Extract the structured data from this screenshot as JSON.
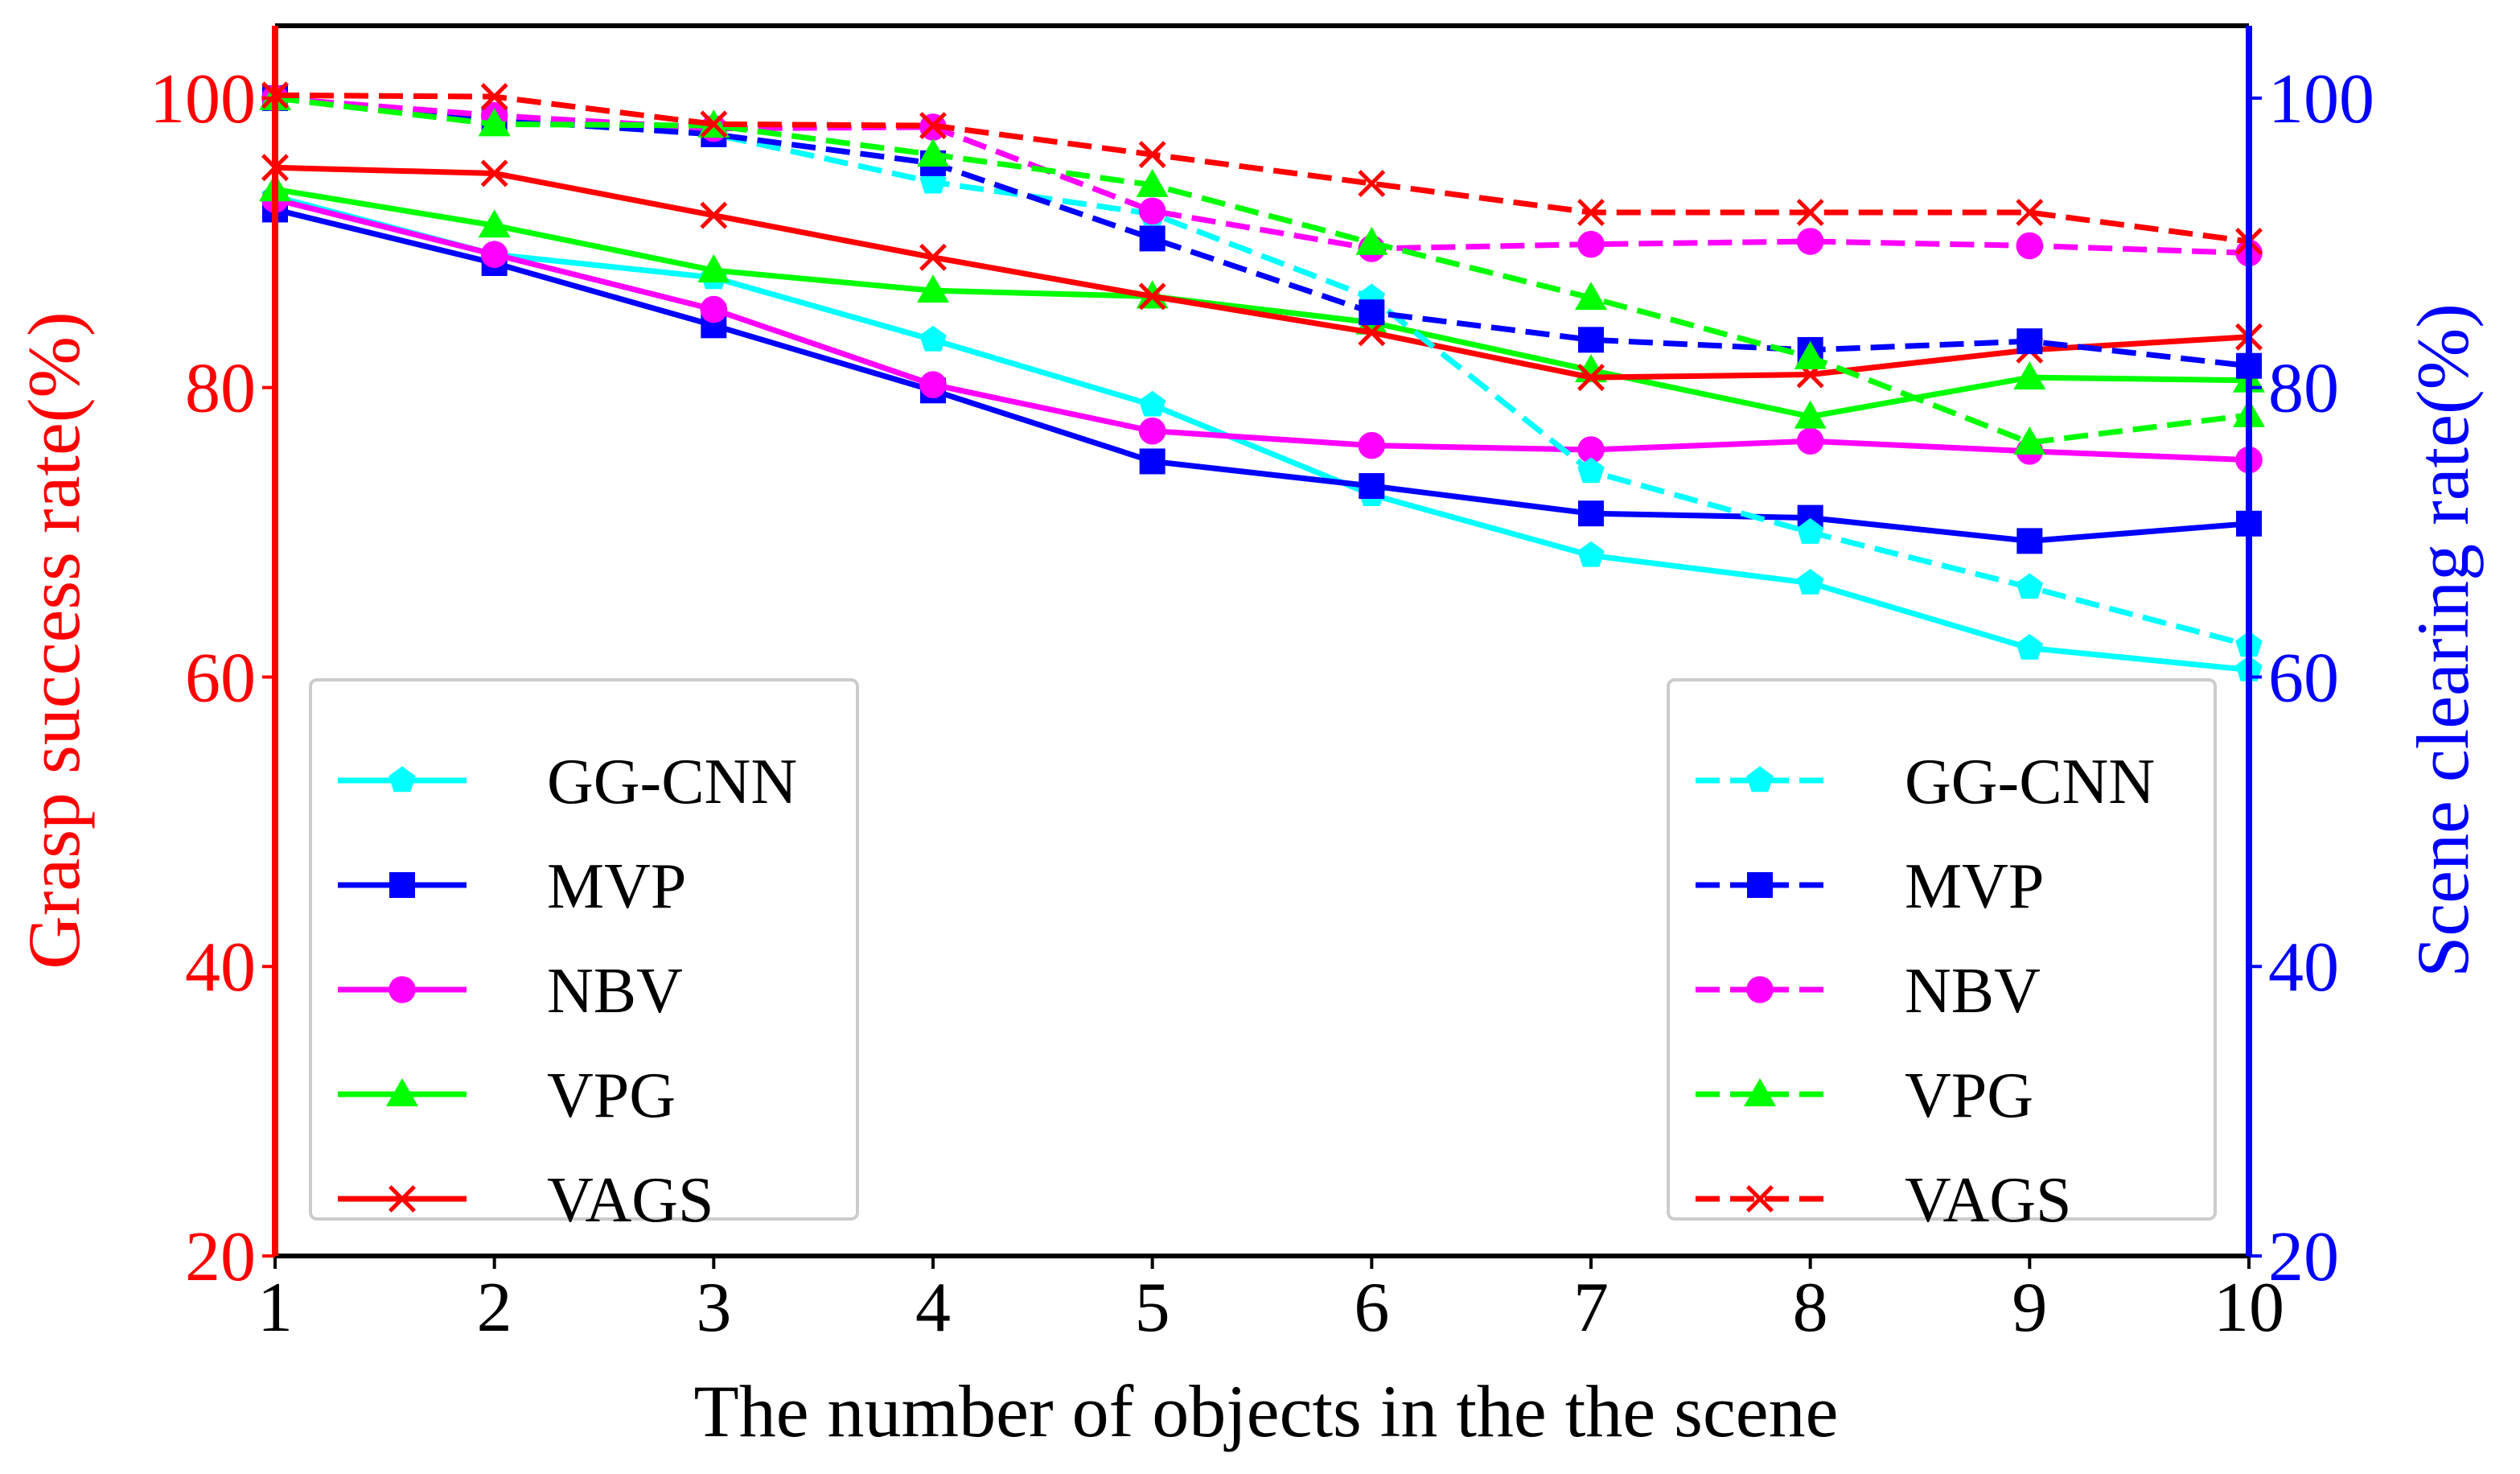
{
  "chart_data": {
    "type": "line",
    "xlabel": "The number of objects in the the scene",
    "ylabel_left": "Grasp success rate(%)",
    "ylabel_right": "Scene clearing rate(%)",
    "x": [
      1,
      2,
      3,
      4,
      5,
      6,
      7,
      8,
      9,
      10
    ],
    "x_ticks": [
      "1",
      "2",
      "3",
      "4",
      "5",
      "6",
      "7",
      "8",
      "9",
      "10"
    ],
    "ylim_left": [
      20,
      105
    ],
    "ylim_right": [
      20,
      105
    ],
    "yticks_left": [
      "20",
      "40",
      "60",
      "80",
      "100"
    ],
    "yticks_right": [
      "20",
      "40",
      "60",
      "80",
      "100"
    ],
    "colors": {
      "left_axis": "#ff0000",
      "right_axis": "#0000ff",
      "GG-CNN": "#00ffff",
      "MVP": "#0000ff",
      "NBV": "#ff00ff",
      "VPG": "#00ff00",
      "VAGS": "#ff0000"
    },
    "grasp_success_series": [
      {
        "name": "GG-CNN",
        "marker": "pentagon",
        "values": [
          93.2,
          89.2,
          87.6,
          83.3,
          78.8,
          72.6,
          68.4,
          66.5,
          62.0,
          60.5
        ]
      },
      {
        "name": "MVP",
        "marker": "square",
        "values": [
          92.3,
          88.6,
          84.3,
          79.8,
          74.9,
          73.2,
          71.3,
          71.0,
          69.4,
          70.6
        ]
      },
      {
        "name": "NBV",
        "marker": "circle",
        "values": [
          93.0,
          89.2,
          85.4,
          80.2,
          77.0,
          76.0,
          75.7,
          76.3,
          75.6,
          75.0
        ]
      },
      {
        "name": "VPG",
        "marker": "triangle",
        "values": [
          93.7,
          91.2,
          88.1,
          86.7,
          86.3,
          84.5,
          81.2,
          78.0,
          80.7,
          80.5
        ]
      },
      {
        "name": "VAGS",
        "marker": "x",
        "values": [
          95.2,
          94.8,
          91.9,
          89.0,
          86.3,
          83.8,
          80.7,
          80.9,
          82.6,
          83.5
        ]
      }
    ],
    "scene_clearing_series": [
      {
        "name": "GG-CNN",
        "marker": "pentagon",
        "values": [
          100.0,
          98.5,
          97.5,
          94.2,
          92.0,
          86.2,
          74.2,
          70.0,
          66.2,
          62.2
        ]
      },
      {
        "name": "MVP",
        "marker": "square",
        "values": [
          100.0,
          98.5,
          97.5,
          95.5,
          90.3,
          85.2,
          83.3,
          82.6,
          83.2,
          81.5
        ]
      },
      {
        "name": "NBV",
        "marker": "circle",
        "values": [
          100.0,
          98.8,
          97.9,
          98.0,
          92.2,
          89.6,
          89.9,
          90.1,
          89.8,
          89.3
        ]
      },
      {
        "name": "VPG",
        "marker": "triangle",
        "values": [
          100.0,
          98.2,
          98.1,
          96.1,
          94.0,
          90.0,
          86.2,
          82.1,
          76.2,
          78.1
        ]
      },
      {
        "name": "VAGS",
        "marker": "x",
        "values": [
          100.2,
          100.1,
          98.2,
          98.1,
          96.1,
          94.1,
          92.1,
          92.1,
          92.1,
          90.1
        ]
      }
    ],
    "legend_left_labels": [
      "GG-CNN",
      "MVP",
      "NBV",
      "VPG",
      "VAGS"
    ],
    "legend_right_labels": [
      "GG-CNN",
      "MVP",
      "NBV",
      "VPG",
      "VAGS"
    ],
    "legend_left_position": "lower-left",
    "legend_right_position": "lower-right",
    "grid": false
  }
}
